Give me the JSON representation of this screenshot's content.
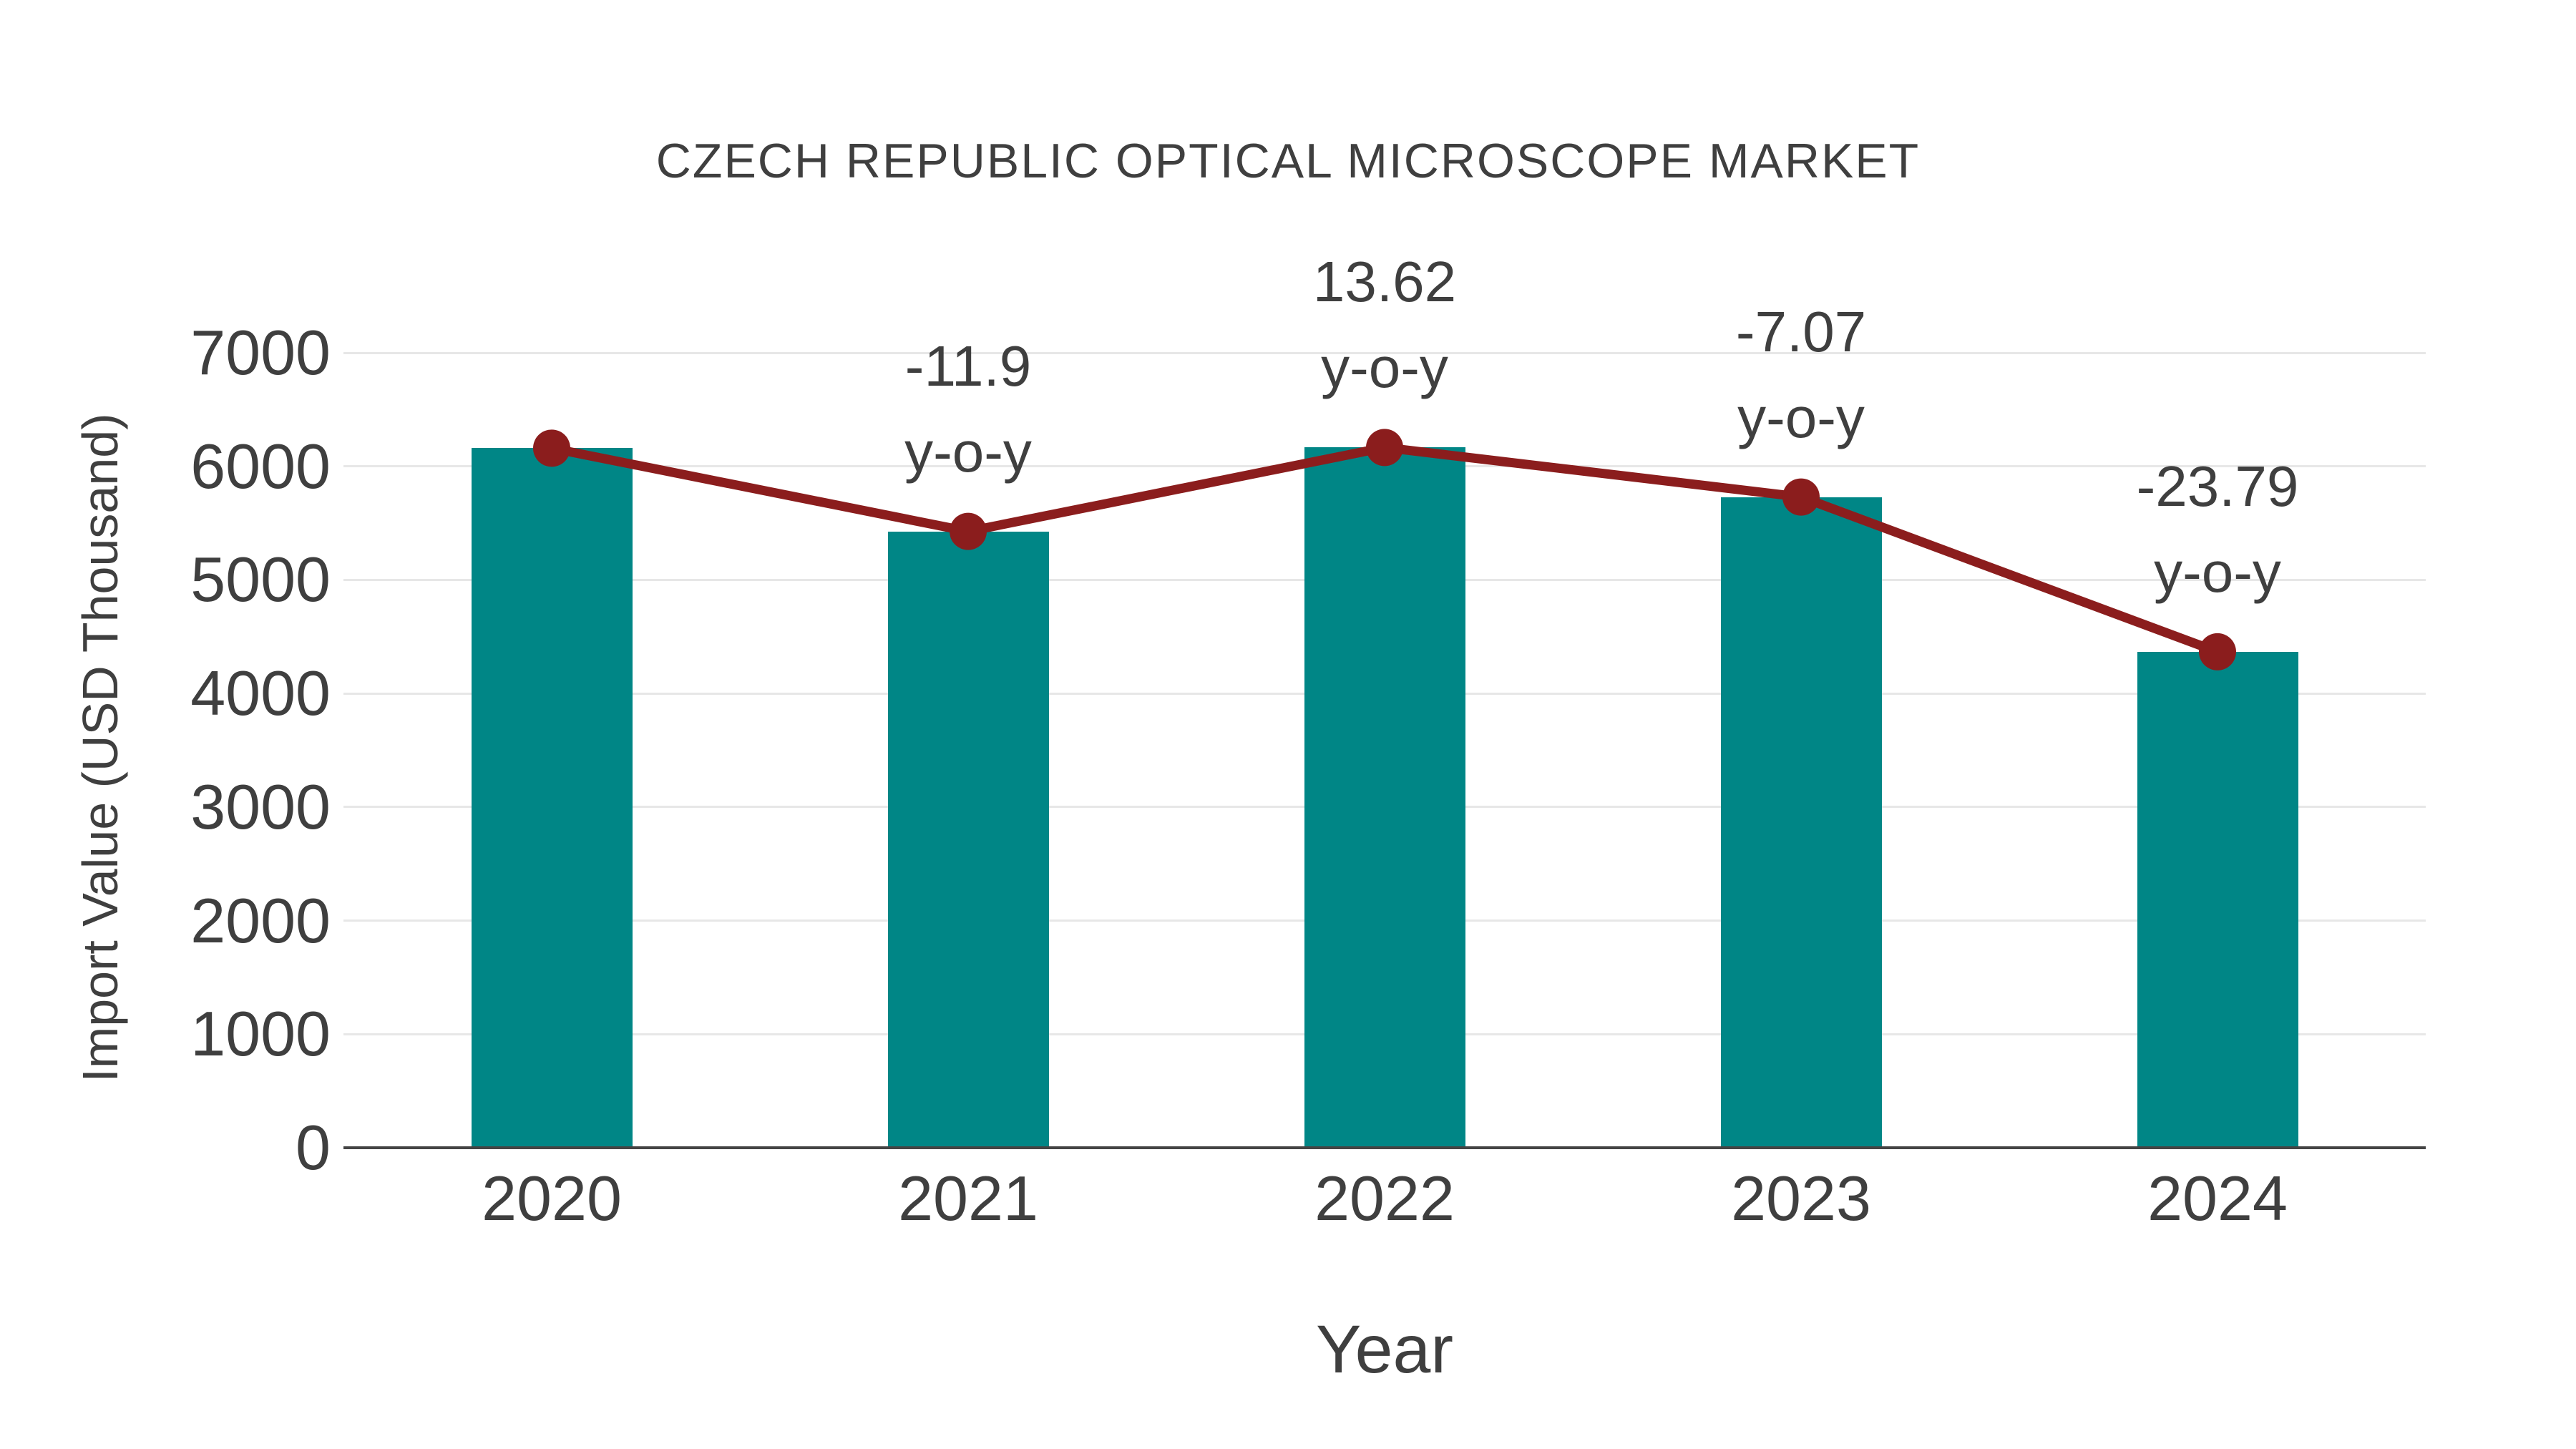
{
  "chart_data": {
    "type": "bar",
    "title": "CZECH REPUBLIC OPTICAL MICROSCOPE MARKET",
    "xlabel": "Year",
    "ylabel": "Import Value (USD Thousand)",
    "categories": [
      "2020",
      "2021",
      "2022",
      "2023",
      "2024"
    ],
    "series": [
      {
        "name": "import-value-bars",
        "type": "bar",
        "color": "#008686",
        "values": [
          6160,
          5427,
          6166,
          5730,
          4367
        ]
      },
      {
        "name": "import-value-trend-line",
        "type": "line",
        "color": "#8B1D1D",
        "values": [
          6160,
          5427,
          6166,
          5730,
          4367
        ]
      }
    ],
    "annotations": [
      {
        "category": "2021",
        "line1": "-11.9",
        "line2": "y-o-y"
      },
      {
        "category": "2022",
        "line1": "13.62",
        "line2": "y-o-y"
      },
      {
        "category": "2023",
        "line1": "-7.07",
        "line2": "y-o-y"
      },
      {
        "category": "2024",
        "line1": "-23.79",
        "line2": "y-o-y"
      }
    ],
    "ylim": [
      0,
      7000
    ],
    "yticks": [
      0,
      1000,
      2000,
      3000,
      4000,
      5000,
      6000,
      7000
    ],
    "grid": true,
    "legend": "none",
    "colors": {
      "bar": "#008686",
      "line": "#8B1D1D",
      "text": "#3f3f3f",
      "gridline": "#e7e7e7",
      "axis_line": "#444444",
      "background": "#ffffff"
    }
  }
}
